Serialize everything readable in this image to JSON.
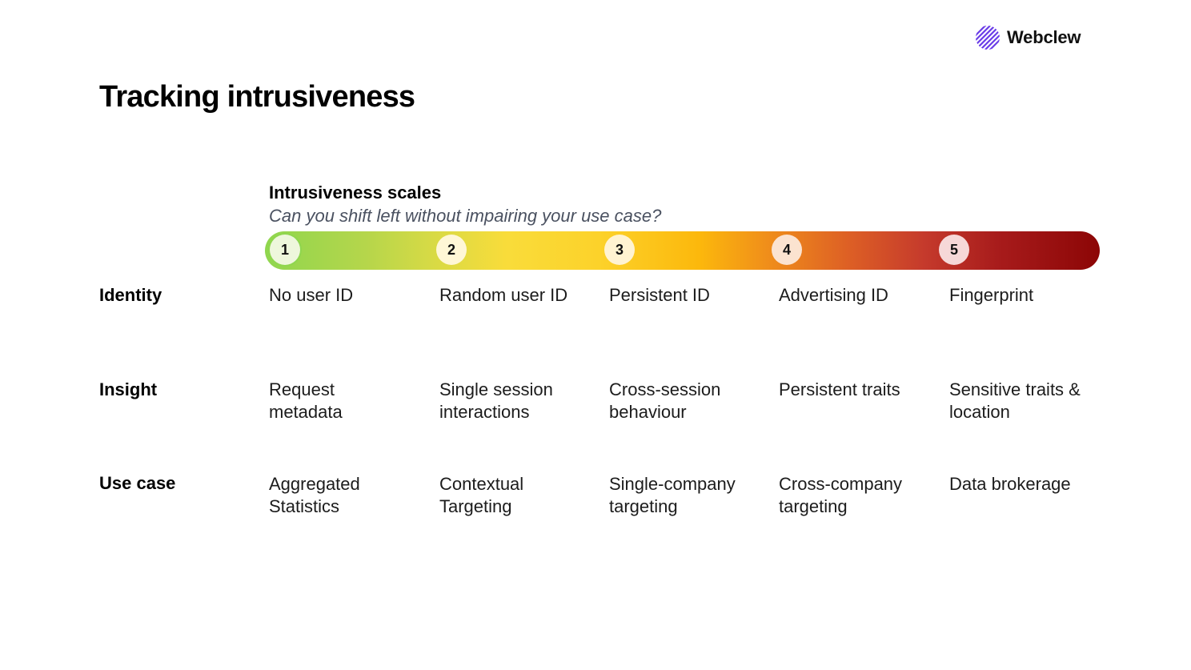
{
  "logo": {
    "text": "Webclew",
    "icon": "striped-circle-logo",
    "color": "#6b3de8"
  },
  "title": "Tracking intrusiveness",
  "scale": {
    "heading": "Intrusiveness scales",
    "subtitle": "Can you shift left without impairing your use case?",
    "gradient_colors": [
      "#8fd64e",
      "#f9dc3a",
      "#fcb80c",
      "#c53a2c",
      "#8c0606"
    ],
    "steps": [
      {
        "number": "1",
        "badge_color": "#eef7dc",
        "ring_color": "#8fd64e"
      },
      {
        "number": "2",
        "badge_color": "#fff7d6"
      },
      {
        "number": "3",
        "badge_color": "#fff3d1"
      },
      {
        "number": "4",
        "badge_color": "#fbe3d0"
      },
      {
        "number": "5",
        "badge_color": "#f6d8d8"
      }
    ]
  },
  "rows": [
    {
      "label": "Identity",
      "cells": [
        "No user ID",
        "Random user ID",
        "Persistent ID",
        "Advertising ID",
        "Fingerprint"
      ]
    },
    {
      "label": "Insight",
      "cells": [
        "Request\nmetadata",
        "Single session\ninteractions",
        "Cross-session\nbehaviour",
        "Persistent traits",
        "Sensitive traits &\nlocation"
      ]
    },
    {
      "label": "Use case",
      "cells": [
        "Aggregated\nStatistics",
        "Contextual\nTargeting",
        "Single-company\ntargeting",
        "Cross-company\ntargeting",
        "Data brokerage"
      ]
    }
  ]
}
